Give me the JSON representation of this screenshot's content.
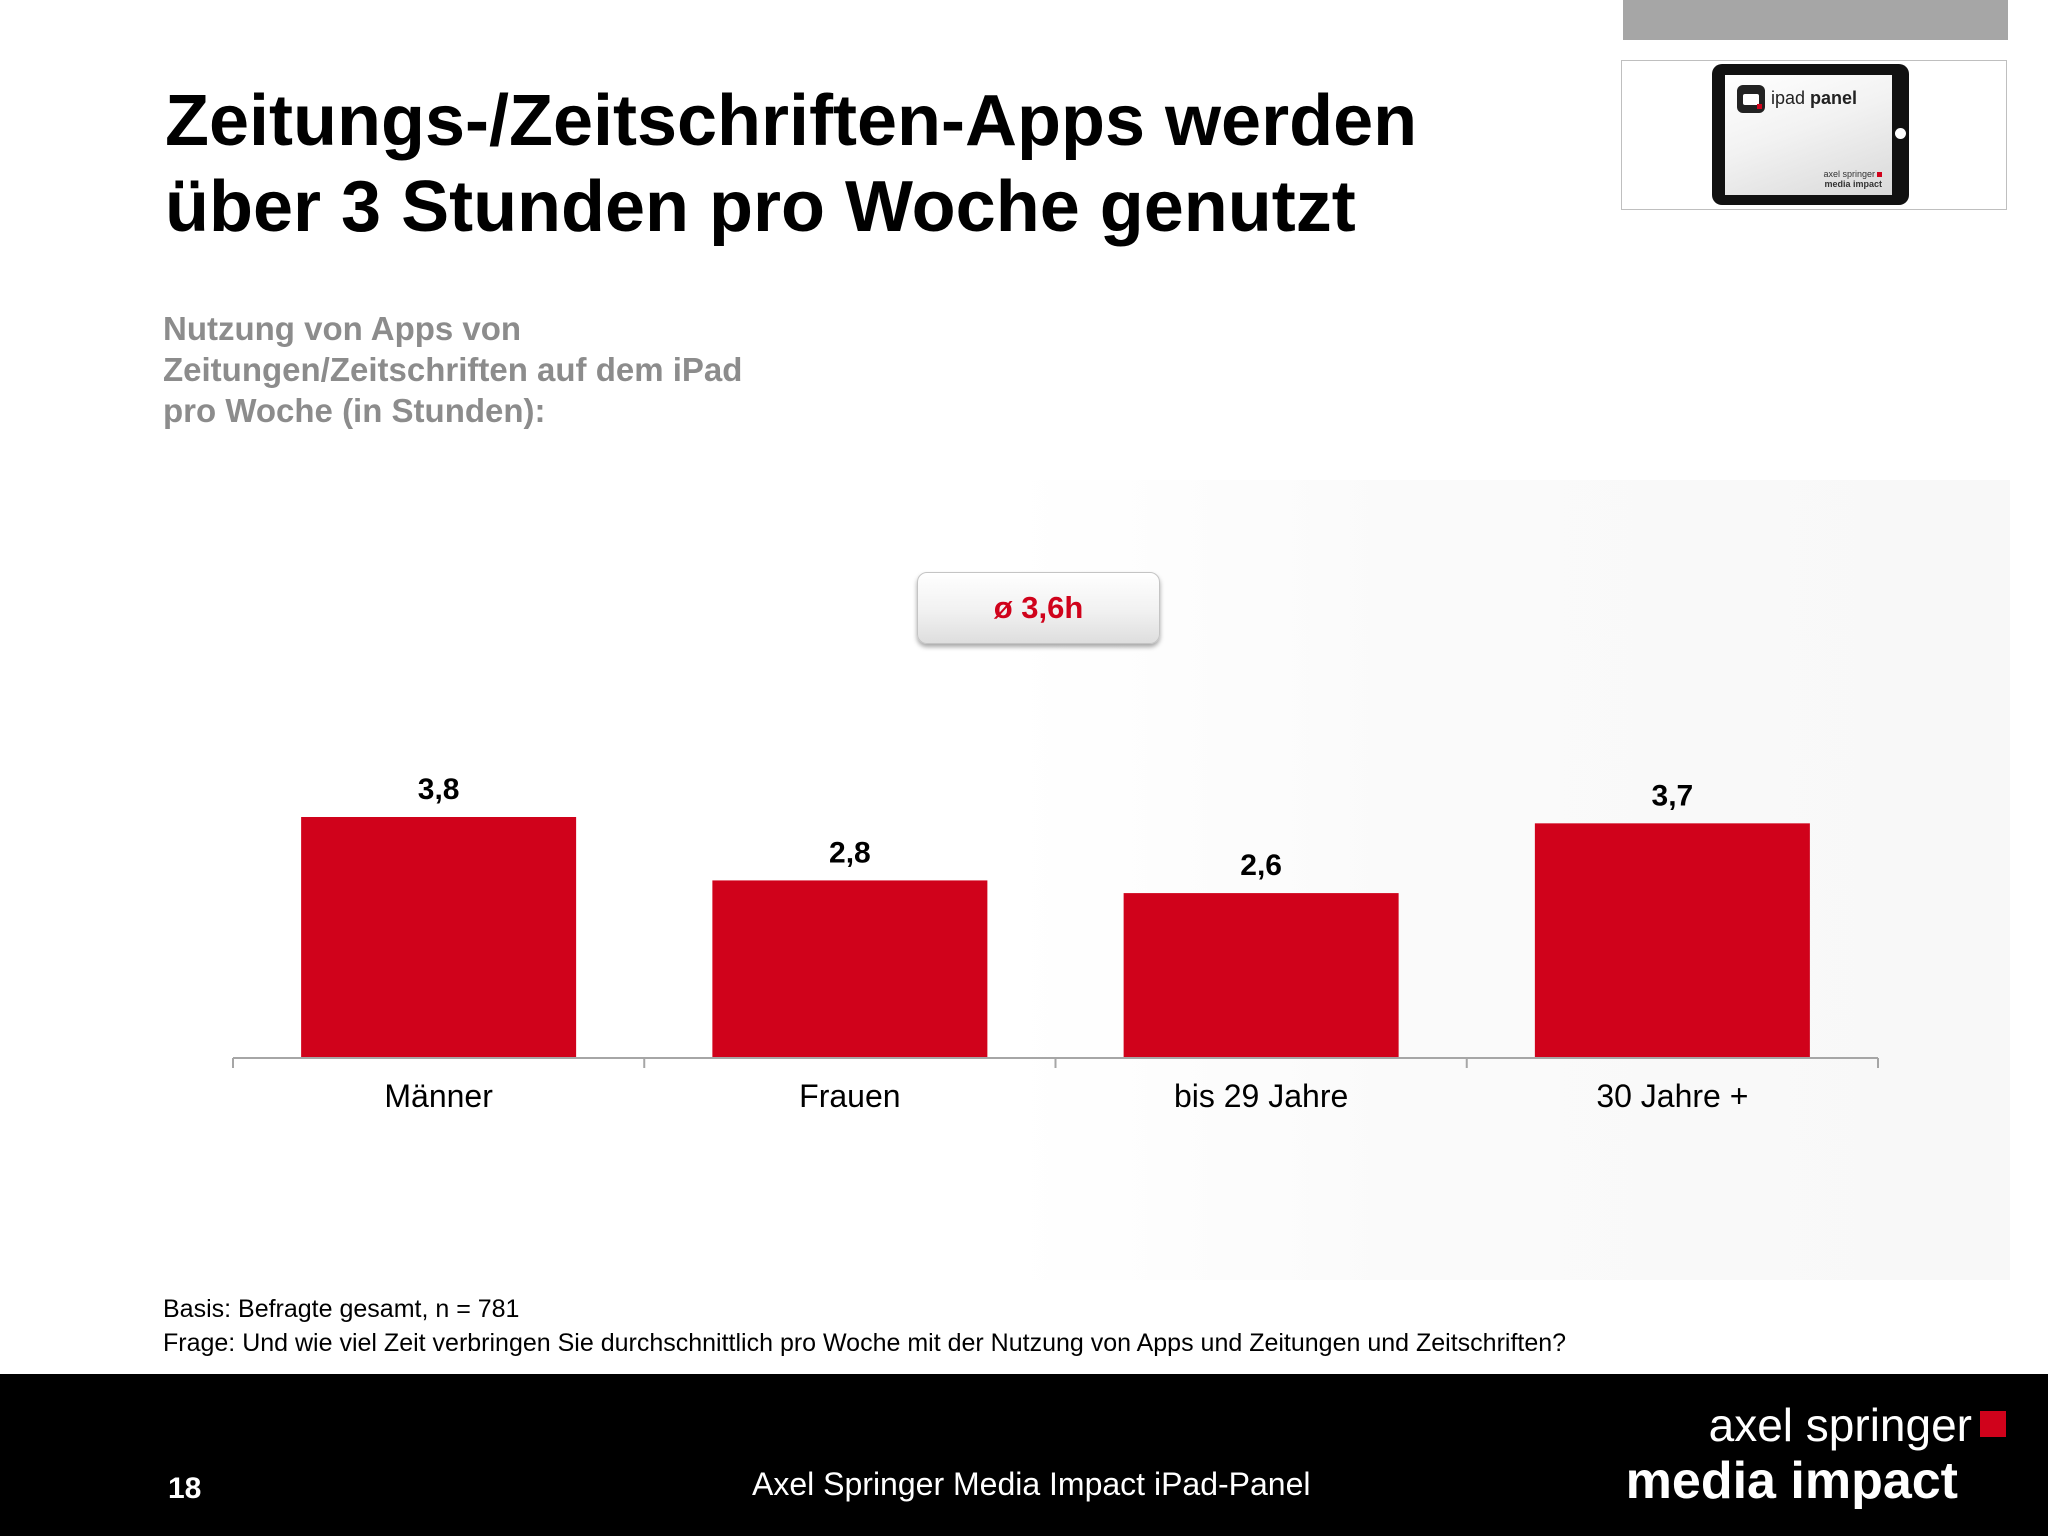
{
  "header": {
    "title_line1": "Zeitungs-/Zeitschriften-Apps werden",
    "title_line2": "über 3 Stunden pro Woche genutzt",
    "subtitle_line1": "Nutzung von Apps von",
    "subtitle_line2": "Zeitungen/Zeitschriften auf dem iPad",
    "subtitle_line3": "pro Woche (in Stunden):"
  },
  "logo": {
    "panel_label_light": "ipad",
    "panel_label_bold": "panel",
    "brand_line1": "axel springer",
    "brand_line2": "media impact"
  },
  "average_badge": "ø 3,6h",
  "chart_data": {
    "type": "bar",
    "categories": [
      "Männer",
      "Frauen",
      "bis 29 Jahre",
      "30 Jahre +"
    ],
    "values": [
      3.8,
      2.8,
      2.6,
      3.7
    ],
    "value_labels": [
      "3,8",
      "2,8",
      "2,6",
      "3,7"
    ],
    "title": "",
    "xlabel": "",
    "ylabel": "",
    "ylim": [
      0,
      3.8
    ],
    "grid": false,
    "bar_color": "#d0021b",
    "axis_color": "#a6a6a6"
  },
  "footnote": {
    "basis": "Basis: Befragte gesamt, n = 781",
    "question": "Frage: Und wie viel Zeit verbringen Sie durchschnittlich pro Woche mit der Nutzung von Apps und Zeitungen und Zeitschriften?"
  },
  "footer": {
    "page_number": "18",
    "center_text": "Axel Springer Media Impact iPad-Panel",
    "brand_line1": "axel springer",
    "brand_line2": "media impact"
  },
  "colors": {
    "accent": "#d0021b",
    "subtitle_gray": "#8c8c8c",
    "footer_bg": "#000000"
  }
}
